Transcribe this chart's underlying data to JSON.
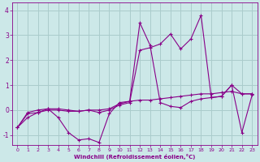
{
  "xlabel": "Windchill (Refroidissement éolien,°C)",
  "xlim": [
    -0.5,
    23.5
  ],
  "ylim": [
    -1.4,
    4.3
  ],
  "yticks": [
    -1,
    0,
    1,
    2,
    3,
    4
  ],
  "xticks": [
    0,
    1,
    2,
    3,
    4,
    5,
    6,
    7,
    8,
    9,
    10,
    11,
    12,
    13,
    14,
    15,
    16,
    17,
    18,
    19,
    20,
    21,
    22,
    23
  ],
  "bg_color": "#cce8e8",
  "line_color": "#880088",
  "grid_color": "#aacccc",
  "series1_x": [
    0,
    1,
    2,
    3,
    4,
    5,
    6,
    7,
    8,
    9,
    10,
    11,
    12,
    13,
    14,
    15,
    16,
    17,
    18,
    19,
    20,
    21,
    22,
    23
  ],
  "series1_y": [
    -0.7,
    -0.3,
    -0.1,
    0.05,
    -0.3,
    -0.9,
    -1.2,
    -1.15,
    -1.3,
    -0.15,
    0.3,
    0.35,
    3.5,
    2.6,
    0.3,
    0.15,
    0.1,
    0.35,
    0.45,
    0.5,
    0.55,
    1.0,
    -0.9,
    0.6
  ],
  "series2_x": [
    0,
    1,
    2,
    3,
    4,
    5,
    6,
    7,
    8,
    9,
    10,
    11,
    12,
    13,
    14,
    15,
    16,
    17,
    18,
    19,
    20,
    21,
    22,
    23
  ],
  "series2_y": [
    -0.7,
    -0.15,
    -0.1,
    0.0,
    0.0,
    -0.05,
    -0.05,
    0.0,
    0.0,
    0.05,
    0.25,
    0.35,
    0.4,
    0.4,
    0.45,
    0.5,
    0.55,
    0.6,
    0.65,
    0.65,
    0.7,
    0.75,
    0.65,
    0.65
  ],
  "series3_x": [
    0,
    1,
    2,
    3,
    4,
    5,
    6,
    7,
    8,
    9,
    10,
    11,
    12,
    13,
    14,
    15,
    16,
    17,
    18,
    19,
    20,
    21,
    22,
    23
  ],
  "series3_y": [
    -0.7,
    -0.1,
    0.0,
    0.05,
    0.05,
    0.0,
    -0.05,
    0.0,
    -0.1,
    0.0,
    0.2,
    0.3,
    2.4,
    2.5,
    2.65,
    3.05,
    2.45,
    2.85,
    3.8,
    0.5,
    0.55,
    1.0,
    0.65,
    0.65
  ]
}
